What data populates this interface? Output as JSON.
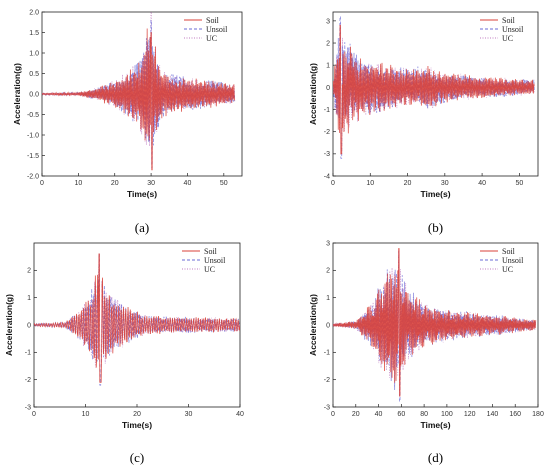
{
  "chart_data": [
    {
      "panel": "a",
      "type": "line",
      "caption": "(a)",
      "xlabel": "Time(s)",
      "ylabel": "Acceleration(g)",
      "xlim": [
        0,
        55
      ],
      "ylim": [
        -2.0,
        2.0
      ],
      "x_ticks": [
        0,
        10,
        20,
        30,
        40,
        50
      ],
      "y_ticks": [
        -2.0,
        -1.5,
        -1.0,
        -0.5,
        0.0,
        0.5,
        1.0,
        1.5,
        2.0
      ],
      "tick_decimals": 1,
      "duration": 53,
      "legend_position": "top-right",
      "series": [
        {
          "name": "Soil",
          "color": "#d9423a",
          "dash": "solid",
          "peak": 1.5,
          "min": -1.85
        },
        {
          "name": "Unsoil",
          "color": "#6b6bd6",
          "dash": "dashed",
          "peak": 1.8,
          "min": -1.8
        },
        {
          "name": "UC",
          "color": "#c07bc0",
          "dash": "dotted",
          "peak": 2.0,
          "min": -1.7
        }
      ],
      "envelope": [
        [
          0,
          0.02
        ],
        [
          10,
          0.04
        ],
        [
          15,
          0.15
        ],
        [
          20,
          0.35
        ],
        [
          24,
          0.6
        ],
        [
          27,
          0.9
        ],
        [
          29,
          1.7
        ],
        [
          31,
          1.3
        ],
        [
          33,
          0.6
        ],
        [
          40,
          0.4
        ],
        [
          46,
          0.35
        ],
        [
          53,
          0.25
        ]
      ],
      "peak_time": 30
    },
    {
      "panel": "b",
      "type": "line",
      "caption": "(b)",
      "xlabel": "Time(s)",
      "ylabel": "Acceleration(g)",
      "xlim": [
        0,
        55
      ],
      "ylim": [
        -4,
        3.4
      ],
      "x_ticks": [
        0,
        10,
        20,
        30,
        40,
        50
      ],
      "y_ticks": [
        -4,
        -3,
        -2,
        -1,
        0,
        1,
        2,
        3
      ],
      "tick_decimals": 0,
      "duration": 54,
      "legend_position": "top-right",
      "series": [
        {
          "name": "Soil",
          "color": "#d9423a",
          "dash": "solid",
          "peak": 2.8,
          "min": -3.0
        },
        {
          "name": "Unsoil",
          "color": "#6b6bd6",
          "dash": "dashed",
          "peak": 3.2,
          "min": -3.2
        },
        {
          "name": "UC",
          "color": "#c07bc0",
          "dash": "dotted",
          "peak": 2.9,
          "min": -2.9
        }
      ],
      "envelope": [
        [
          0,
          0.3
        ],
        [
          1.5,
          2.6
        ],
        [
          3,
          2.4
        ],
        [
          6,
          1.6
        ],
        [
          10,
          1.3
        ],
        [
          15,
          1.1
        ],
        [
          20,
          0.9
        ],
        [
          26,
          1.0
        ],
        [
          30,
          0.7
        ],
        [
          40,
          0.5
        ],
        [
          54,
          0.35
        ]
      ],
      "peak_time": 2
    },
    {
      "panel": "c",
      "type": "line",
      "caption": "(c)",
      "xlabel": "Time(s)",
      "ylabel": "Acceleration(g)",
      "xlim": [
        0,
        40
      ],
      "ylim": [
        -3,
        3
      ],
      "x_ticks": [
        0,
        10,
        20,
        30,
        40
      ],
      "y_ticks": [
        -3,
        -2,
        -1,
        0,
        1,
        2
      ],
      "tick_decimals": 0,
      "duration": 40,
      "legend_position": "top-right",
      "series": [
        {
          "name": "Soil",
          "color": "#d9423a",
          "dash": "solid",
          "peak": 2.6,
          "min": -2.1
        },
        {
          "name": "Unsoil",
          "color": "#6b6bd6",
          "dash": "dashed",
          "peak": 2.6,
          "min": -2.2
        },
        {
          "name": "UC",
          "color": "#c07bc0",
          "dash": "dotted",
          "peak": 2.5,
          "min": -2.0
        }
      ],
      "envelope": [
        [
          0,
          0.05
        ],
        [
          6,
          0.1
        ],
        [
          9,
          0.6
        ],
        [
          11,
          1.2
        ],
        [
          12.7,
          2.4
        ],
        [
          14,
          1.4
        ],
        [
          16,
          1.0
        ],
        [
          19,
          0.6
        ],
        [
          22,
          0.35
        ],
        [
          30,
          0.3
        ],
        [
          40,
          0.25
        ]
      ],
      "peak_time": 12.7
    },
    {
      "panel": "d",
      "type": "line",
      "caption": "(d)",
      "xlabel": "Time(s)",
      "ylabel": "Acceleration(g)",
      "xlim": [
        0,
        180
      ],
      "ylim": [
        -3,
        3
      ],
      "x_ticks": [
        0,
        20,
        40,
        60,
        80,
        100,
        120,
        140,
        160,
        180
      ],
      "y_ticks": [
        -3,
        -2,
        -1,
        0,
        1,
        2,
        3
      ],
      "tick_decimals": 0,
      "duration": 178,
      "legend_position": "top-right",
      "series": [
        {
          "name": "Soil",
          "color": "#d9423a",
          "dash": "solid",
          "peak": 2.8,
          "min": -2.6
        },
        {
          "name": "Unsoil",
          "color": "#6b6bd6",
          "dash": "dashed",
          "peak": 2.7,
          "min": -2.8
        },
        {
          "name": "UC",
          "color": "#c07bc0",
          "dash": "dotted",
          "peak": 2.6,
          "min": -2.5
        }
      ],
      "envelope": [
        [
          0,
          0.05
        ],
        [
          20,
          0.15
        ],
        [
          35,
          0.9
        ],
        [
          45,
          2.0
        ],
        [
          55,
          2.6
        ],
        [
          65,
          1.5
        ],
        [
          80,
          0.8
        ],
        [
          110,
          0.55
        ],
        [
          150,
          0.35
        ],
        [
          178,
          0.2
        ]
      ],
      "peak_time": 58
    }
  ]
}
